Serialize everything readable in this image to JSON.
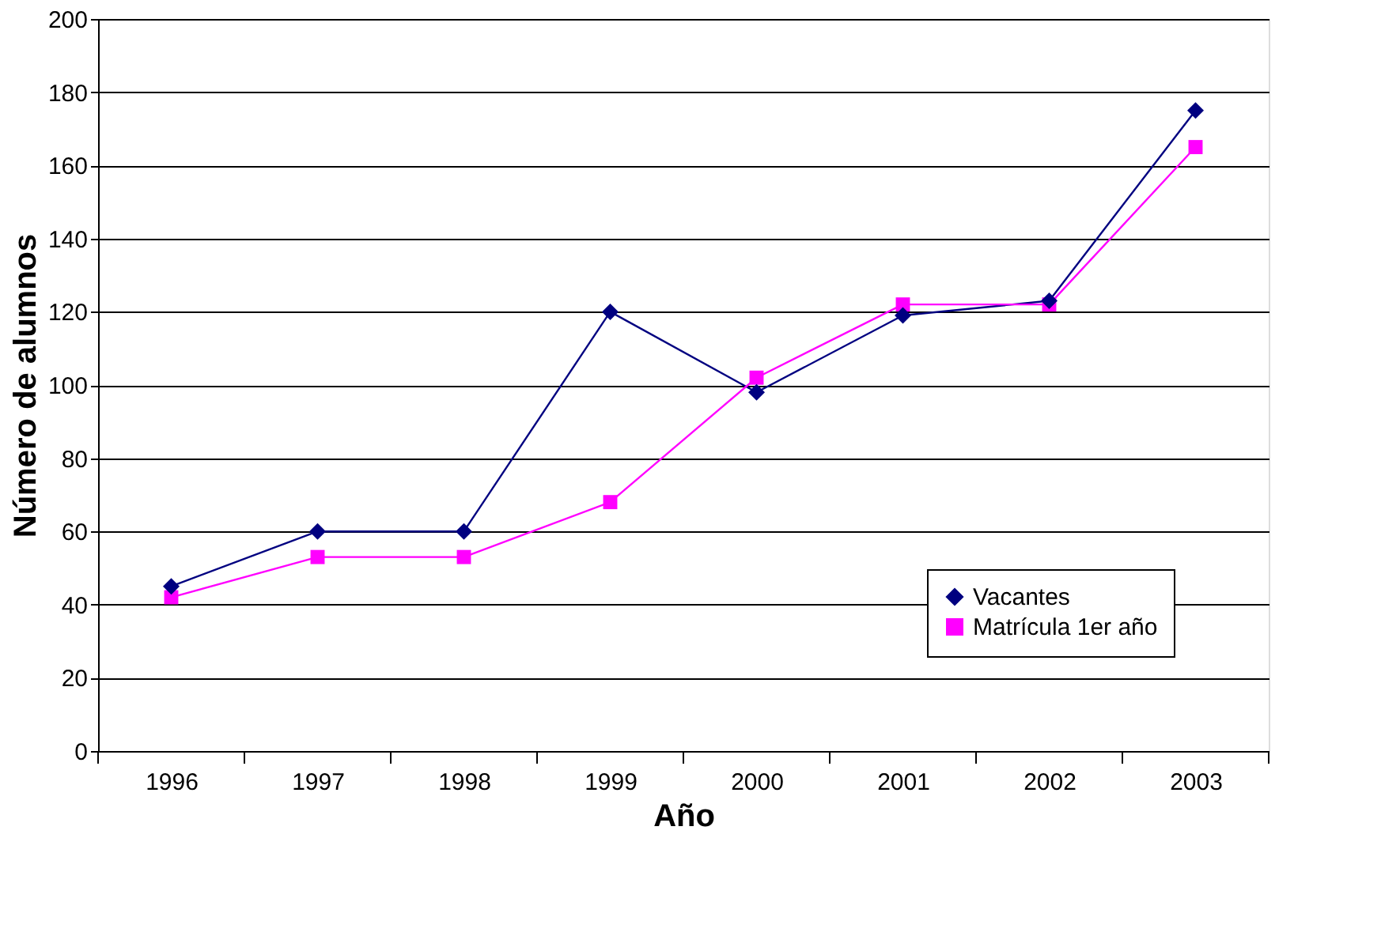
{
  "chart_data": {
    "type": "line",
    "xlabel": "Año",
    "ylabel": "Número de alumnos",
    "categories": [
      "1996",
      "1997",
      "1998",
      "1999",
      "2000",
      "2001",
      "2002",
      "2003"
    ],
    "ylim": [
      0,
      200
    ],
    "yticks": [
      0,
      20,
      40,
      60,
      80,
      100,
      120,
      140,
      160,
      180,
      200
    ],
    "grid": "y",
    "legend": "bottom right",
    "series": [
      {
        "name": "Vacantes",
        "color": "#000080",
        "marker": "diamond",
        "values": [
          45,
          60,
          60,
          120,
          98,
          119,
          123,
          175
        ]
      },
      {
        "name": "Matrícula 1er año",
        "color": "#ff00ff",
        "marker": "square",
        "values": [
          42,
          53,
          53,
          68,
          102,
          122,
          122,
          165
        ]
      }
    ]
  }
}
